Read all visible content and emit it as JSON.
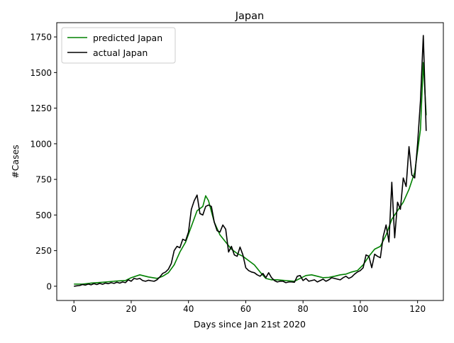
{
  "chart_data": {
    "type": "line",
    "title": "Japan",
    "xlabel": "Days since Jan 21st 2020",
    "ylabel": "#Cases",
    "xlim": [
      -6,
      129
    ],
    "ylim": [
      -100,
      1850
    ],
    "xticks": [
      0,
      20,
      40,
      60,
      80,
      100,
      120
    ],
    "yticks": [
      0,
      250,
      500,
      750,
      1000,
      1250,
      1500,
      1750
    ],
    "grid": false,
    "legend_position": "upper-left",
    "series": [
      {
        "name": "predicted Japan",
        "color": "#008000",
        "x": [
          0,
          3,
          6,
          10,
          14,
          18,
          20,
          23,
          26,
          29,
          31,
          33,
          35,
          37,
          39,
          41,
          43,
          45,
          46,
          47,
          49,
          51,
          53,
          55,
          57,
          59,
          61,
          63,
          65,
          67,
          69,
          71,
          74,
          77,
          79,
          81,
          83,
          85,
          87,
          89,
          91,
          93,
          95,
          97,
          99,
          101,
          103,
          105,
          107,
          109,
          111,
          113,
          115,
          117,
          119,
          121,
          122,
          123
        ],
        "y": [
          15,
          15,
          22,
          28,
          35,
          40,
          60,
          80,
          65,
          55,
          70,
          95,
          150,
          240,
          310,
          420,
          530,
          560,
          635,
          600,
          450,
          360,
          310,
          260,
          230,
          210,
          180,
          150,
          100,
          55,
          45,
          45,
          40,
          35,
          55,
          75,
          80,
          70,
          60,
          62,
          70,
          80,
          85,
          100,
          110,
          150,
          210,
          260,
          280,
          360,
          470,
          530,
          590,
          680,
          800,
          1100,
          1570,
          1200
        ]
      },
      {
        "name": "actual Japan",
        "color": "#000000",
        "x": [
          0,
          1,
          2,
          3,
          4,
          5,
          6,
          7,
          8,
          9,
          10,
          11,
          12,
          13,
          14,
          15,
          16,
          17,
          18,
          19,
          20,
          21,
          22,
          23,
          24,
          25,
          26,
          27,
          28,
          29,
          30,
          31,
          32,
          33,
          34,
          35,
          36,
          37,
          38,
          39,
          40,
          41,
          42,
          43,
          44,
          45,
          46,
          47,
          48,
          49,
          50,
          51,
          52,
          53,
          54,
          55,
          56,
          57,
          58,
          59,
          60,
          61,
          62,
          63,
          64,
          65,
          66,
          67,
          68,
          69,
          70,
          71,
          72,
          73,
          74,
          75,
          76,
          77,
          78,
          79,
          80,
          81,
          82,
          83,
          84,
          85,
          86,
          87,
          88,
          89,
          90,
          91,
          92,
          93,
          94,
          95,
          96,
          97,
          98,
          99,
          100,
          101,
          102,
          103,
          104,
          105,
          106,
          107,
          108,
          109,
          110,
          111,
          112,
          113,
          114,
          115,
          116,
          117,
          118,
          119,
          120,
          121,
          122,
          123
        ],
        "y": [
          0,
          3,
          5,
          12,
          8,
          15,
          10,
          18,
          12,
          20,
          14,
          22,
          18,
          25,
          20,
          28,
          22,
          30,
          25,
          45,
          35,
          55,
          50,
          55,
          40,
          35,
          42,
          38,
          35,
          45,
          65,
          90,
          100,
          120,
          160,
          250,
          280,
          270,
          330,
          320,
          380,
          540,
          600,
          640,
          510,
          500,
          560,
          570,
          560,
          450,
          390,
          380,
          430,
          400,
          240,
          280,
          220,
          210,
          275,
          220,
          130,
          110,
          100,
          95,
          80,
          70,
          90,
          60,
          95,
          60,
          40,
          30,
          35,
          35,
          25,
          30,
          30,
          28,
          70,
          75,
          40,
          55,
          35,
          40,
          45,
          30,
          40,
          50,
          35,
          45,
          60,
          55,
          50,
          45,
          60,
          70,
          55,
          65,
          85,
          100,
          110,
          130,
          220,
          210,
          130,
          225,
          210,
          200,
          350,
          430,
          310,
          730,
          340,
          590,
          540,
          760,
          700,
          980,
          780,
          760,
          1000,
          1300,
          1760,
          1090
        ]
      }
    ]
  }
}
